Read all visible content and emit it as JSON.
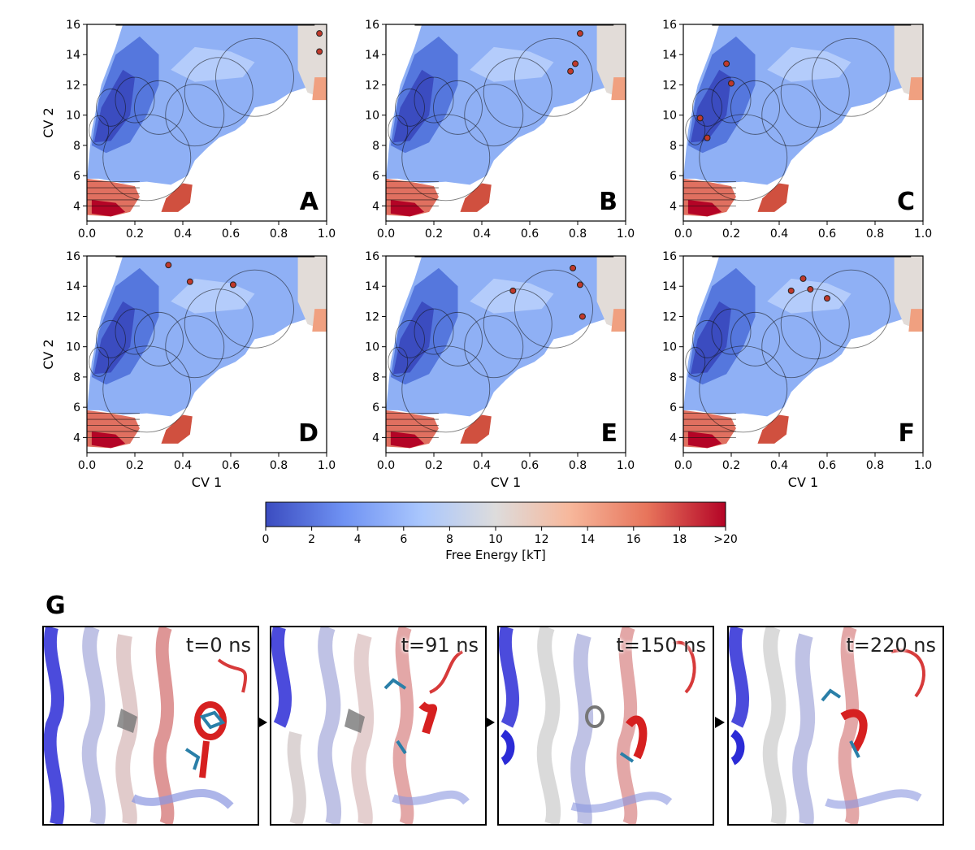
{
  "chart_data": [
    {
      "type": "heatmap",
      "panel": "A",
      "xlabel": "",
      "ylabel": "CV 2",
      "xlim": [
        0,
        1
      ],
      "ylim": [
        3,
        16
      ],
      "xticks": [
        "0.0",
        "0.2",
        "0.4",
        "0.6",
        "0.8",
        "1.0"
      ],
      "yticks": [
        "4",
        "6",
        "8",
        "10",
        "12",
        "14",
        "16"
      ],
      "samples": [
        {
          "x": 0.97,
          "y": 15.4
        },
        {
          "x": 0.97,
          "y": 14.2
        }
      ]
    },
    {
      "type": "heatmap",
      "panel": "B",
      "xlabel": "",
      "ylabel": "",
      "xlim": [
        0,
        1
      ],
      "ylim": [
        3,
        16
      ],
      "xticks": [
        "0.0",
        "0.2",
        "0.4",
        "0.6",
        "0.8",
        "1.0"
      ],
      "yticks": [
        "4",
        "6",
        "8",
        "10",
        "12",
        "14",
        "16"
      ],
      "samples": [
        {
          "x": 0.81,
          "y": 15.4
        },
        {
          "x": 0.79,
          "y": 13.4
        },
        {
          "x": 0.77,
          "y": 12.9
        }
      ]
    },
    {
      "type": "heatmap",
      "panel": "C",
      "xlabel": "",
      "ylabel": "",
      "xlim": [
        0,
        1
      ],
      "ylim": [
        3,
        16
      ],
      "xticks": [
        "0.0",
        "0.2",
        "0.4",
        "0.6",
        "0.8",
        "1.0"
      ],
      "yticks": [
        "4",
        "6",
        "8",
        "10",
        "12",
        "14",
        "16"
      ],
      "samples": [
        {
          "x": 0.18,
          "y": 13.4
        },
        {
          "x": 0.2,
          "y": 12.1
        },
        {
          "x": 0.07,
          "y": 9.8
        },
        {
          "x": 0.1,
          "y": 8.5
        }
      ]
    },
    {
      "type": "heatmap",
      "panel": "D",
      "xlabel": "CV 1",
      "ylabel": "CV 2",
      "xlim": [
        0,
        1
      ],
      "ylim": [
        3,
        16
      ],
      "xticks": [
        "0.0",
        "0.2",
        "0.4",
        "0.6",
        "0.8",
        "1.0"
      ],
      "yticks": [
        "4",
        "6",
        "8",
        "10",
        "12",
        "14",
        "16"
      ],
      "samples": [
        {
          "x": 0.34,
          "y": 15.4
        },
        {
          "x": 0.43,
          "y": 14.3
        },
        {
          "x": 0.61,
          "y": 14.1
        }
      ]
    },
    {
      "type": "heatmap",
      "panel": "E",
      "xlabel": "CV 1",
      "ylabel": "",
      "xlim": [
        0,
        1
      ],
      "ylim": [
        3,
        16
      ],
      "xticks": [
        "0.0",
        "0.2",
        "0.4",
        "0.6",
        "0.8",
        "1.0"
      ],
      "yticks": [
        "4",
        "6",
        "8",
        "10",
        "12",
        "14",
        "16"
      ],
      "samples": [
        {
          "x": 0.78,
          "y": 15.2
        },
        {
          "x": 0.81,
          "y": 14.1
        },
        {
          "x": 0.53,
          "y": 13.7
        },
        {
          "x": 0.82,
          "y": 12.0
        }
      ]
    },
    {
      "type": "heatmap",
      "panel": "F",
      "xlabel": "CV 1",
      "ylabel": "",
      "xlim": [
        0,
        1
      ],
      "ylim": [
        3,
        16
      ],
      "xticks": [
        "0.0",
        "0.2",
        "0.4",
        "0.6",
        "0.8",
        "1.0"
      ],
      "yticks": [
        "4",
        "6",
        "8",
        "10",
        "12",
        "14",
        "16"
      ],
      "samples": [
        {
          "x": 0.5,
          "y": 14.5
        },
        {
          "x": 0.45,
          "y": 13.7
        },
        {
          "x": 0.53,
          "y": 13.8
        },
        {
          "x": 0.6,
          "y": 13.2
        }
      ]
    }
  ],
  "colorbar": {
    "label": "Free Energy [kT]",
    "ticks": [
      "0",
      "2",
      "4",
      "6",
      "8",
      "10",
      "12",
      "14",
      "16",
      "18",
      ">20"
    ],
    "stops": [
      "#3b4cc0",
      "#6f92f3",
      "#aac7fd",
      "#dddcdc",
      "#f7b89c",
      "#e7745b",
      "#b40426"
    ]
  },
  "panel_g": {
    "letter": "G",
    "snapshots": [
      {
        "time": "t=0 ns"
      },
      {
        "time": "t=91 ns"
      },
      {
        "time": "t=150 ns"
      },
      {
        "time": "t=220 ns"
      }
    ]
  },
  "colors": {
    "low": "#3b4cc0",
    "mid": "#dddcdc",
    "high": "#b40426",
    "sample": "#c0392b",
    "ligand": "#2a7fa8",
    "sidechain": "#808080"
  }
}
